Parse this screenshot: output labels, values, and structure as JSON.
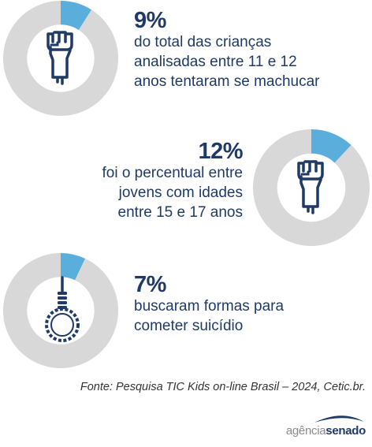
{
  "chart_data": [
    {
      "type": "pie",
      "values": [
        9,
        91
      ],
      "value_text": "9%",
      "description_lines": [
        "do total das crianças",
        "analisadas entre 11 e 12",
        "anos tentaram se machucar"
      ],
      "icon": "raised-fist-icon"
    },
    {
      "type": "pie",
      "values": [
        12,
        88
      ],
      "value_text": "12%",
      "description_lines": [
        "foi o percentual entre",
        "jovens com idades",
        "entre 15 e 17 anos"
      ],
      "icon": "raised-fist-icon"
    },
    {
      "type": "pie",
      "values": [
        7,
        93
      ],
      "value_text": "7%",
      "description_lines": [
        "buscaram formas para",
        "cometer suicídio"
      ],
      "icon": "noose-icon"
    }
  ],
  "colors": {
    "highlight": "#5aaedc",
    "remainder": "#d8d8d8",
    "icon": "#1f3a66",
    "text": "#1f3a66"
  },
  "source": "Fonte: Pesquisa TIC Kids on-line Brasil – 2024, Cetic.br.",
  "logo": {
    "part1": "agência",
    "part2": "senado"
  }
}
